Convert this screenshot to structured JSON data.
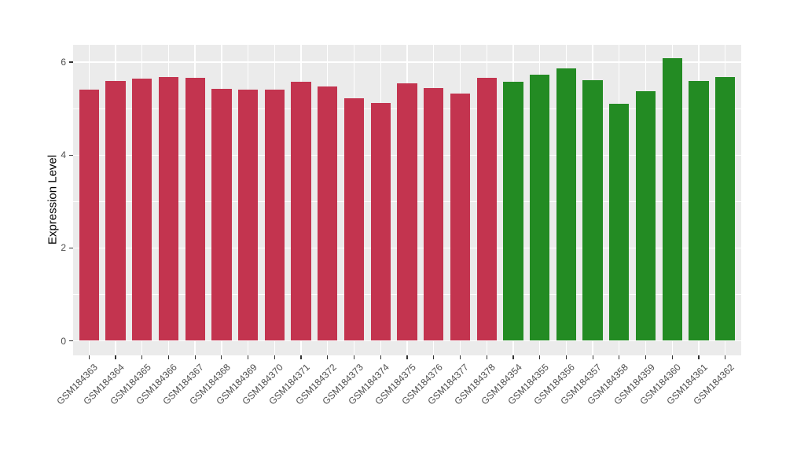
{
  "chart_data": {
    "type": "bar",
    "title": "",
    "xlabel": "",
    "ylabel": "Expression Level",
    "categories": [
      "GSM184363",
      "GSM184364",
      "GSM184365",
      "GSM184366",
      "GSM184367",
      "GSM184368",
      "GSM184369",
      "GSM184370",
      "GSM184371",
      "GSM184372",
      "GSM184373",
      "GSM184374",
      "GSM184375",
      "GSM184376",
      "GSM184377",
      "GSM184378",
      "GSM184354",
      "GSM184355",
      "GSM184356",
      "GSM184357",
      "GSM184358",
      "GSM184359",
      "GSM184360",
      "GSM184361",
      "GSM184362"
    ],
    "values": [
      5.4,
      5.59,
      5.64,
      5.68,
      5.66,
      5.42,
      5.4,
      5.4,
      5.57,
      5.48,
      5.22,
      5.12,
      5.54,
      5.45,
      5.32,
      5.66,
      5.57,
      5.73,
      5.86,
      5.61,
      5.11,
      5.37,
      6.08,
      5.59,
      5.68
    ],
    "colors": [
      "#C3344F",
      "#C3344F",
      "#C3344F",
      "#C3344F",
      "#C3344F",
      "#C3344F",
      "#C3344F",
      "#C3344F",
      "#C3344F",
      "#C3344F",
      "#C3344F",
      "#C3344F",
      "#C3344F",
      "#C3344F",
      "#C3344F",
      "#C3344F",
      "#238B23",
      "#238B23",
      "#238B23",
      "#238B23",
      "#238B23",
      "#238B23",
      "#238B23",
      "#238B23",
      "#238B23"
    ],
    "group_colors": {
      "group_red": "#C3344F",
      "group_green": "#238B23"
    },
    "yticks": [
      0,
      2,
      4,
      6
    ],
    "yticks_minor": [
      1,
      3,
      5
    ],
    "ylim": [
      -0.31,
      6.37
    ],
    "grid": true,
    "legend_position": "none",
    "panel_background": "#EBEBEB",
    "gridline_color": "#FFFFFF",
    "axis_text_color": "#4D4D4D"
  }
}
